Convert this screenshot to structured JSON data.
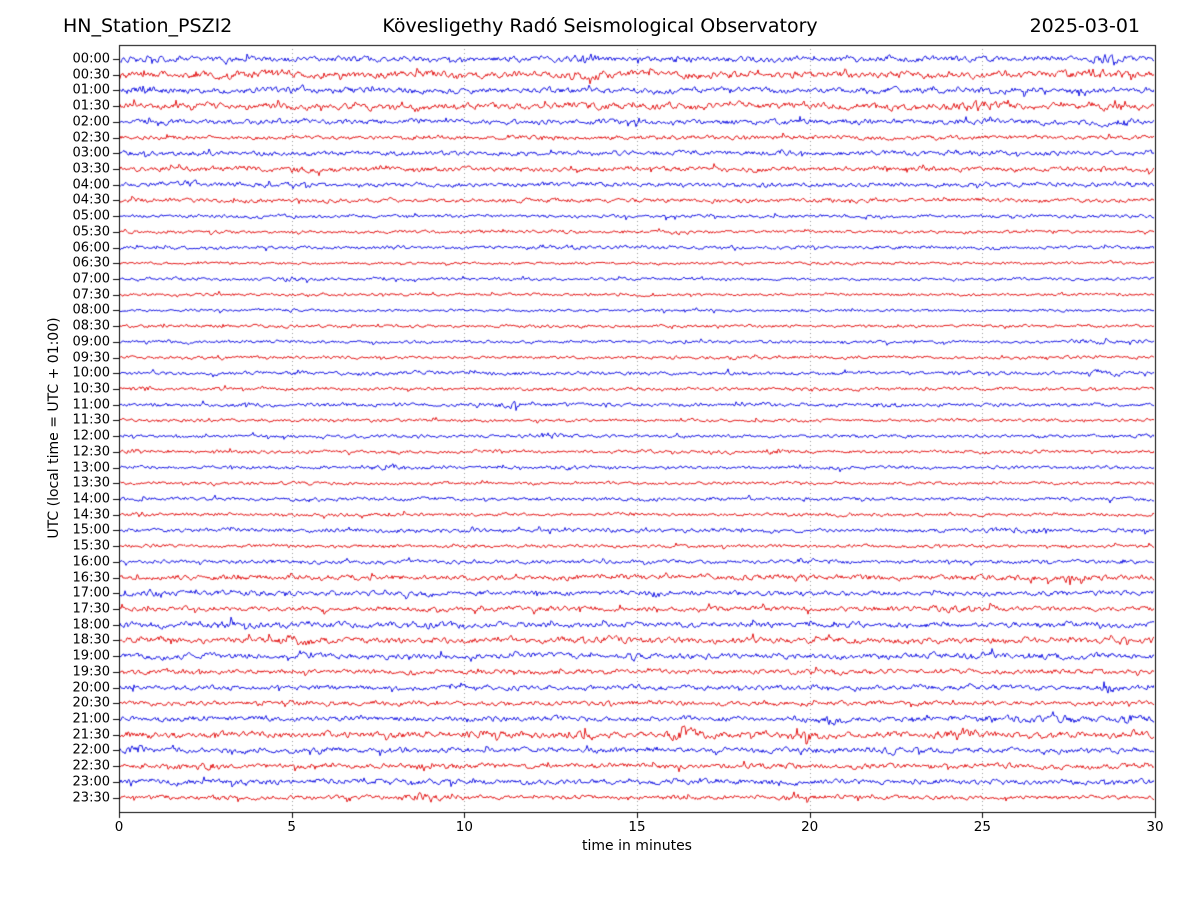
{
  "header": {
    "station": "HN_Station_PSZI2",
    "observatory": "Kövesligethy Radó Seismological Observatory",
    "date": "2025-03-01"
  },
  "chart_data": {
    "type": "line",
    "variant": "helicorder-day-plot",
    "station": "HN_Station_PSZI2",
    "title": "Kövesligethy Radó Seismological Observatory",
    "date": "2025-03-01",
    "xlabel": "time in minutes",
    "ylabel": "UTC (local time = UTC + 01:00)",
    "xlim": [
      0,
      30
    ],
    "x_ticks": [
      0,
      5,
      10,
      15,
      20,
      25,
      30
    ],
    "grid": "vertical-dotted-every-5-min",
    "minutes_per_row": 30,
    "trace_colors": {
      "blue": "#0000e0",
      "red": "#e00000"
    },
    "grid_color": "#999999",
    "rows": [
      {
        "time": "00:00",
        "color": "blue",
        "amplitude": 3.2,
        "bursts": [
          [
            13.5,
            1.7,
            0.5
          ],
          [
            16,
            1.5,
            0.4
          ],
          [
            28.5,
            1.9,
            0.3
          ]
        ]
      },
      {
        "time": "00:30",
        "color": "red",
        "amplitude": 4.2,
        "bursts": [
          [
            4,
            1.5,
            0.8
          ],
          [
            9.5,
            1.5,
            0.6
          ],
          [
            13,
            1.4,
            0.8
          ],
          [
            28,
            1.4,
            0.6
          ]
        ]
      },
      {
        "time": "01:00",
        "color": "blue",
        "amplitude": 3.2,
        "bursts": [
          [
            0.7,
            1.9,
            0.5
          ],
          [
            5,
            1.4,
            0.5
          ]
        ]
      },
      {
        "time": "01:30",
        "color": "red",
        "amplitude": 3.8,
        "bursts": [
          [
            25,
            1.7,
            0.8
          ],
          [
            29,
            1.5,
            0.5
          ]
        ]
      },
      {
        "time": "02:00",
        "color": "blue",
        "amplitude": 2.8,
        "bursts": [
          [
            29,
            1.7,
            0.4
          ]
        ]
      },
      {
        "time": "02:30",
        "color": "red",
        "amplitude": 2.1,
        "bursts": []
      },
      {
        "time": "03:00",
        "color": "blue",
        "amplitude": 2.4,
        "bursts": []
      },
      {
        "time": "03:30",
        "color": "red",
        "amplitude": 2.6,
        "bursts": [
          [
            5.2,
            1.7,
            0.3
          ]
        ]
      },
      {
        "time": "04:00",
        "color": "blue",
        "amplitude": 2.4,
        "bursts": [
          [
            2,
            1.4,
            0.4
          ]
        ]
      },
      {
        "time": "04:30",
        "color": "red",
        "amplitude": 2.1,
        "bursts": []
      },
      {
        "time": "05:00",
        "color": "blue",
        "amplitude": 1.6,
        "bursts": [
          [
            5,
            1.4,
            0.3
          ]
        ]
      },
      {
        "time": "05:30",
        "color": "red",
        "amplitude": 1.5,
        "bursts": []
      },
      {
        "time": "06:00",
        "color": "blue",
        "amplitude": 1.6,
        "bursts": [
          [
            12.7,
            1.8,
            0.8
          ]
        ]
      },
      {
        "time": "06:30",
        "color": "red",
        "amplitude": 1.3,
        "bursts": []
      },
      {
        "time": "07:00",
        "color": "blue",
        "amplitude": 1.5,
        "bursts": [
          [
            5,
            1.7,
            0.25
          ]
        ]
      },
      {
        "time": "07:30",
        "color": "red",
        "amplitude": 1.3,
        "bursts": []
      },
      {
        "time": "08:00",
        "color": "blue",
        "amplitude": 1.3,
        "bursts": [
          [
            5,
            1.6,
            0.25
          ]
        ]
      },
      {
        "time": "08:30",
        "color": "red",
        "amplitude": 1.5,
        "bursts": []
      },
      {
        "time": "09:00",
        "color": "blue",
        "amplitude": 1.5,
        "bursts": [
          [
            28,
            1.7,
            0.5
          ]
        ]
      },
      {
        "time": "09:30",
        "color": "red",
        "amplitude": 1.5,
        "bursts": [
          [
            17.5,
            1.5,
            0.4
          ]
        ]
      },
      {
        "time": "10:00",
        "color": "blue",
        "amplitude": 1.8,
        "bursts": [
          [
            28.5,
            1.5,
            0.4
          ]
        ]
      },
      {
        "time": "10:30",
        "color": "red",
        "amplitude": 1.6,
        "bursts": [
          [
            0.7,
            2.0,
            0.3
          ]
        ]
      },
      {
        "time": "11:00",
        "color": "blue",
        "amplitude": 1.8,
        "bursts": [
          [
            8,
            1.4,
            0.4
          ],
          [
            11.5,
            1.9,
            0.5
          ],
          [
            22,
            1.4,
            0.5
          ]
        ]
      },
      {
        "time": "11:30",
        "color": "red",
        "amplitude": 1.5,
        "bursts": []
      },
      {
        "time": "12:00",
        "color": "blue",
        "amplitude": 1.6,
        "bursts": [
          [
            12.3,
            1.9,
            0.4
          ],
          [
            23,
            1.4,
            0.3
          ]
        ]
      },
      {
        "time": "12:30",
        "color": "red",
        "amplitude": 1.6,
        "bursts": [
          [
            0.5,
            1.7,
            0.3
          ],
          [
            19,
            2.1,
            0.4
          ]
        ]
      },
      {
        "time": "13:00",
        "color": "blue",
        "amplitude": 1.6,
        "bursts": [
          [
            7.7,
            2.4,
            0.4
          ],
          [
            13,
            1.4,
            0.5
          ]
        ]
      },
      {
        "time": "13:30",
        "color": "red",
        "amplitude": 1.5,
        "bursts": []
      },
      {
        "time": "14:00",
        "color": "blue",
        "amplitude": 1.8,
        "bursts": []
      },
      {
        "time": "14:30",
        "color": "red",
        "amplitude": 1.6,
        "bursts": []
      },
      {
        "time": "15:00",
        "color": "blue",
        "amplitude": 2.0,
        "bursts": [
          [
            26,
            1.5,
            1.0
          ]
        ]
      },
      {
        "time": "15:30",
        "color": "red",
        "amplitude": 1.6,
        "bursts": []
      },
      {
        "time": "16:00",
        "color": "blue",
        "amplitude": 1.9,
        "bursts": [
          [
            20,
            1.6,
            0.5
          ]
        ]
      },
      {
        "time": "16:30",
        "color": "red",
        "amplitude": 2.8,
        "bursts": [
          [
            27.5,
            1.7,
            0.6
          ]
        ]
      },
      {
        "time": "17:00",
        "color": "blue",
        "amplitude": 2.6,
        "bursts": [
          [
            1.2,
            2.1,
            0.4
          ],
          [
            15.5,
            1.9,
            0.3
          ]
        ]
      },
      {
        "time": "17:30",
        "color": "red",
        "amplitude": 2.5,
        "bursts": [
          [
            24,
            1.4,
            2.0
          ]
        ]
      },
      {
        "time": "18:00",
        "color": "blue",
        "amplitude": 3.1,
        "bursts": [
          [
            3,
            1.3,
            1.0
          ],
          [
            9,
            1.3,
            1.0
          ]
        ]
      },
      {
        "time": "18:30",
        "color": "red",
        "amplitude": 3.5,
        "bursts": [
          [
            5,
            1.3,
            1.0
          ],
          [
            14,
            1.3,
            1.0
          ]
        ]
      },
      {
        "time": "19:00",
        "color": "blue",
        "amplitude": 3.1,
        "bursts": [
          [
            25,
            1.3,
            1.5
          ]
        ]
      },
      {
        "time": "19:30",
        "color": "red",
        "amplitude": 2.5,
        "bursts": []
      },
      {
        "time": "20:00",
        "color": "blue",
        "amplitude": 2.5,
        "bursts": [
          [
            28.7,
            2.0,
            0.3
          ]
        ]
      },
      {
        "time": "20:30",
        "color": "red",
        "amplitude": 2.3,
        "bursts": []
      },
      {
        "time": "21:00",
        "color": "blue",
        "amplitude": 2.7,
        "bursts": [
          [
            20.5,
            1.7,
            0.5
          ],
          [
            26.5,
            1.7,
            1.5
          ],
          [
            29.3,
            1.9,
            0.5
          ]
        ]
      },
      {
        "time": "21:30",
        "color": "red",
        "amplitude": 3.9,
        "bursts": [
          [
            10.5,
            1.7,
            0.5
          ],
          [
            13.2,
            1.8,
            0.4
          ],
          [
            16.3,
            1.9,
            0.4
          ],
          [
            19.8,
            2.1,
            0.3
          ],
          [
            24.3,
            1.8,
            0.5
          ]
        ]
      },
      {
        "time": "22:00",
        "color": "blue",
        "amplitude": 2.8,
        "bursts": [
          [
            0.5,
            2.1,
            0.3
          ],
          [
            8.5,
            1.4,
            0.5
          ],
          [
            22.5,
            1.4,
            0.5
          ]
        ]
      },
      {
        "time": "22:30",
        "color": "red",
        "amplitude": 2.8,
        "bursts": [
          [
            2.5,
            1.9,
            0.3
          ],
          [
            9,
            1.4,
            0.5
          ]
        ]
      },
      {
        "time": "23:00",
        "color": "blue",
        "amplitude": 2.8,
        "bursts": [
          [
            4,
            1.4,
            0.5
          ]
        ]
      },
      {
        "time": "23:30",
        "color": "red",
        "amplitude": 2.1,
        "bursts": [
          [
            8.8,
            1.8,
            0.5
          ],
          [
            19.5,
            1.4,
            1.0
          ]
        ]
      }
    ]
  }
}
